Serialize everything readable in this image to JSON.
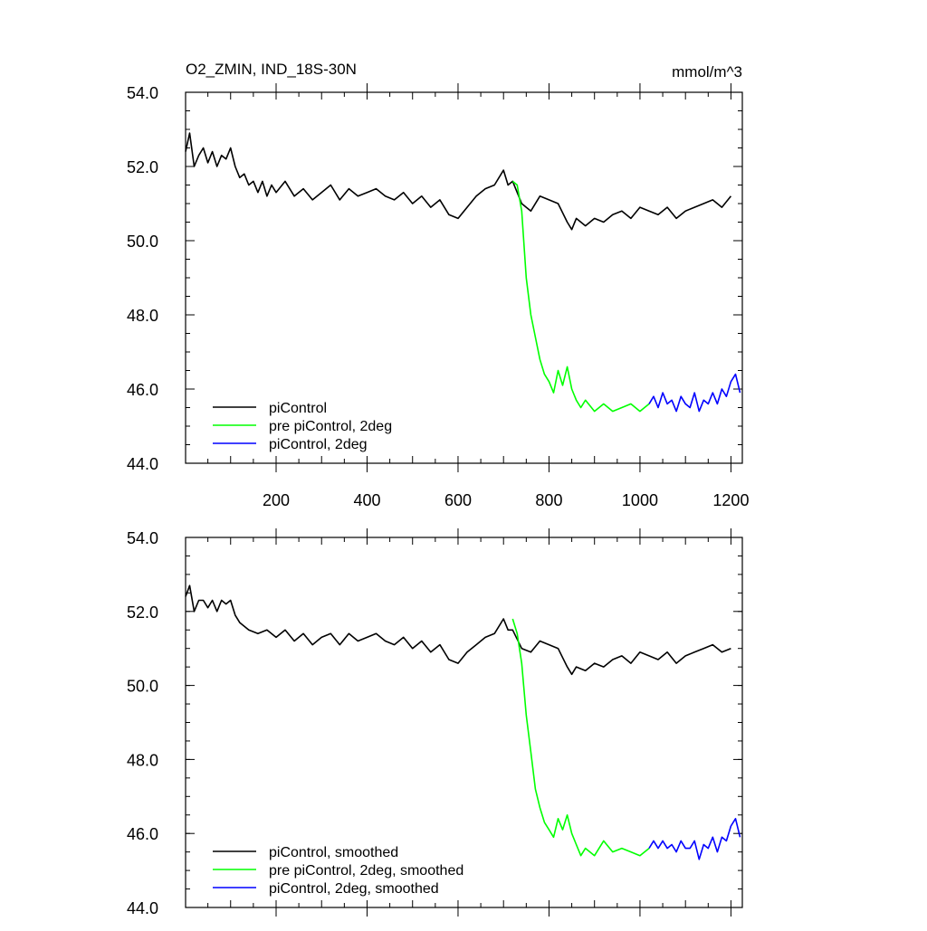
{
  "chart_data": [
    {
      "type": "line",
      "title": "O2_ZMIN, IND_18S-30N",
      "units": "mmol/m^3",
      "xlim": [
        1,
        1225
      ],
      "ylim": [
        44,
        54
      ],
      "yticks": [
        44,
        46,
        48,
        50,
        52,
        54
      ],
      "ytick_labels": [
        "44.0",
        "46.0",
        "48.0",
        "50.0",
        "52.0",
        "54.0"
      ],
      "xticks": [
        200,
        400,
        600,
        800,
        1000,
        1200
      ],
      "xtick_labels": [
        "200",
        "400",
        "600",
        "800",
        "1000",
        "1200"
      ],
      "grid": false,
      "legend_position": "bottom-left",
      "series": [
        {
          "name": "piControl",
          "color": "#000000",
          "x": [
            1,
            10,
            20,
            30,
            40,
            50,
            60,
            70,
            80,
            90,
            100,
            110,
            120,
            130,
            140,
            150,
            160,
            170,
            180,
            190,
            200,
            220,
            240,
            260,
            280,
            300,
            320,
            340,
            360,
            380,
            400,
            420,
            440,
            460,
            480,
            500,
            520,
            540,
            560,
            580,
            600,
            620,
            640,
            660,
            680,
            700,
            710,
            720,
            730,
            740,
            750,
            760,
            780,
            800,
            820,
            840,
            850,
            860,
            880,
            900,
            920,
            940,
            960,
            980,
            1000,
            1020,
            1040,
            1060,
            1080,
            1100,
            1120,
            1140,
            1160,
            1180,
            1200
          ],
          "y": [
            52.4,
            52.9,
            52.0,
            52.3,
            52.5,
            52.1,
            52.4,
            52.0,
            52.3,
            52.2,
            52.5,
            52.0,
            51.7,
            51.8,
            51.5,
            51.6,
            51.3,
            51.6,
            51.2,
            51.5,
            51.3,
            51.6,
            51.2,
            51.4,
            51.1,
            51.3,
            51.5,
            51.1,
            51.4,
            51.2,
            51.3,
            51.4,
            51.2,
            51.1,
            51.3,
            51.0,
            51.2,
            50.9,
            51.1,
            50.7,
            50.6,
            50.9,
            51.2,
            51.4,
            51.5,
            51.9,
            51.5,
            51.6,
            51.3,
            51.0,
            50.9,
            50.8,
            51.2,
            51.1,
            51.0,
            50.5,
            50.3,
            50.6,
            50.4,
            50.6,
            50.5,
            50.7,
            50.8,
            50.6,
            50.9,
            50.8,
            50.7,
            50.9,
            50.6,
            50.8,
            50.9,
            51.0,
            51.1,
            50.9,
            51.2
          ]
        },
        {
          "name": "pre piControl, 2deg",
          "color": "#00ff00",
          "x": [
            720,
            730,
            740,
            750,
            760,
            770,
            780,
            790,
            800,
            810,
            820,
            830,
            840,
            850,
            860,
            870,
            880,
            900,
            920,
            940,
            960,
            980,
            1000,
            1020
          ],
          "y": [
            51.6,
            51.5,
            50.8,
            49.0,
            48.0,
            47.4,
            46.8,
            46.4,
            46.2,
            45.9,
            46.5,
            46.1,
            46.6,
            46.0,
            45.7,
            45.5,
            45.7,
            45.4,
            45.6,
            45.4,
            45.5,
            45.6,
            45.4,
            45.6
          ]
        },
        {
          "name": "piControl, 2deg",
          "color": "#0000ff",
          "x": [
            1020,
            1030,
            1040,
            1050,
            1060,
            1070,
            1080,
            1090,
            1100,
            1110,
            1120,
            1130,
            1140,
            1150,
            1160,
            1170,
            1180,
            1190,
            1200,
            1210,
            1220
          ],
          "y": [
            45.6,
            45.8,
            45.5,
            45.9,
            45.6,
            45.7,
            45.4,
            45.8,
            45.6,
            45.5,
            45.9,
            45.4,
            45.7,
            45.6,
            45.9,
            45.6,
            46.0,
            45.8,
            46.2,
            46.4,
            45.9
          ]
        }
      ]
    },
    {
      "type": "line",
      "xlim": [
        1,
        1225
      ],
      "ylim": [
        44,
        54
      ],
      "yticks": [
        44,
        46,
        48,
        50,
        52,
        54
      ],
      "ytick_labels": [
        "44.0",
        "46.0",
        "48.0",
        "50.0",
        "52.0",
        "54.0"
      ],
      "xticks": [
        200,
        400,
        600,
        800,
        1000,
        1200
      ],
      "grid": false,
      "legend_position": "bottom-left",
      "series": [
        {
          "name": "piControl, smoothed",
          "color": "#000000",
          "x": [
            1,
            10,
            20,
            30,
            40,
            50,
            60,
            70,
            80,
            90,
            100,
            110,
            120,
            140,
            160,
            180,
            200,
            220,
            240,
            260,
            280,
            300,
            320,
            340,
            360,
            380,
            400,
            420,
            440,
            460,
            480,
            500,
            520,
            540,
            560,
            580,
            600,
            620,
            640,
            660,
            680,
            700,
            710,
            720,
            740,
            760,
            780,
            800,
            820,
            840,
            850,
            860,
            880,
            900,
            920,
            940,
            960,
            980,
            1000,
            1020,
            1040,
            1060,
            1080,
            1100,
            1120,
            1140,
            1160,
            1180,
            1200
          ],
          "y": [
            52.4,
            52.7,
            52.0,
            52.3,
            52.3,
            52.1,
            52.3,
            52.0,
            52.3,
            52.2,
            52.3,
            51.9,
            51.7,
            51.5,
            51.4,
            51.5,
            51.3,
            51.5,
            51.2,
            51.4,
            51.1,
            51.3,
            51.4,
            51.1,
            51.4,
            51.2,
            51.3,
            51.4,
            51.2,
            51.1,
            51.3,
            51.0,
            51.2,
            50.9,
            51.1,
            50.7,
            50.6,
            50.9,
            51.1,
            51.3,
            51.4,
            51.8,
            51.5,
            51.5,
            51.0,
            50.9,
            51.2,
            51.1,
            51.0,
            50.5,
            50.3,
            50.5,
            50.4,
            50.6,
            50.5,
            50.7,
            50.8,
            50.6,
            50.9,
            50.8,
            50.7,
            50.9,
            50.6,
            50.8,
            50.9,
            51.0,
            51.1,
            50.9,
            51.0
          ]
        },
        {
          "name": "pre piControl, 2deg, smoothed",
          "color": "#00ff00",
          "x": [
            720,
            730,
            740,
            750,
            760,
            770,
            780,
            790,
            800,
            810,
            820,
            830,
            840,
            850,
            860,
            870,
            880,
            900,
            920,
            940,
            960,
            980,
            1000,
            1020
          ],
          "y": [
            51.8,
            51.4,
            50.6,
            49.2,
            48.2,
            47.2,
            46.7,
            46.3,
            46.1,
            45.9,
            46.4,
            46.1,
            46.5,
            46.0,
            45.7,
            45.4,
            45.6,
            45.4,
            45.8,
            45.5,
            45.6,
            45.5,
            45.4,
            45.6
          ]
        },
        {
          "name": "piControl, 2deg, smoothed",
          "color": "#0000ff",
          "x": [
            1020,
            1030,
            1040,
            1050,
            1060,
            1070,
            1080,
            1090,
            1100,
            1110,
            1120,
            1130,
            1140,
            1150,
            1160,
            1170,
            1180,
            1190,
            1200,
            1210,
            1220
          ],
          "y": [
            45.6,
            45.8,
            45.6,
            45.8,
            45.6,
            45.7,
            45.5,
            45.8,
            45.6,
            45.6,
            45.8,
            45.3,
            45.7,
            45.6,
            45.9,
            45.5,
            45.9,
            45.8,
            46.2,
            46.4,
            45.9
          ]
        }
      ]
    }
  ]
}
